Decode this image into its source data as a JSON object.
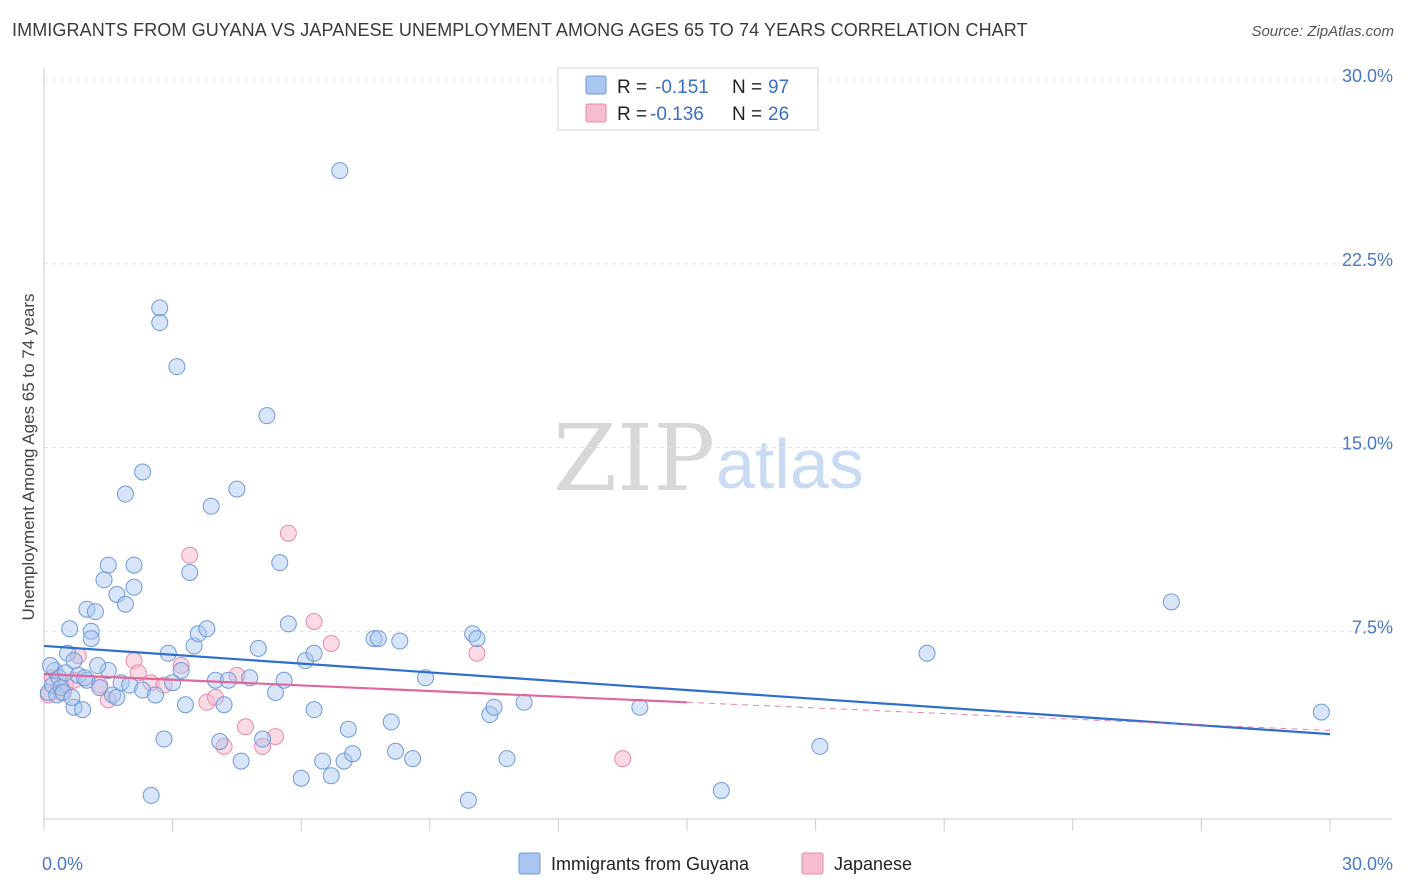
{
  "header": {
    "title": "IMMIGRANTS FROM GUYANA VS JAPANESE UNEMPLOYMENT AMONG AGES 65 TO 74 YEARS CORRELATION CHART",
    "source": "Source: ZipAtlas.com"
  },
  "watermark": {
    "zip": "ZIP",
    "atlas": "atlas"
  },
  "colors": {
    "guyana_fill": "#a9c6f0",
    "guyana_stroke": "#6f9ad8",
    "guyana_line": "#2f6fcc",
    "japanese_fill": "#f6bcd0",
    "japanese_stroke": "#e88aab",
    "japanese_line": "#e0679a",
    "grid": "#e3e3e3",
    "tick_text": "#4a78c4"
  },
  "legend": {
    "rows": [
      {
        "r_label": "R =",
        "r_value": "-0.151",
        "n_label": "N =",
        "n_value": "97"
      },
      {
        "r_label": "R =",
        "r_value": "-0.136",
        "n_label": "N =",
        "n_value": "26"
      }
    ]
  },
  "bottom_legend": {
    "series1": "Immigrants from Guyana",
    "series2": "Japanese"
  },
  "chart_data": {
    "type": "scatter",
    "title": "IMMIGRANTS FROM GUYANA VS JAPANESE UNEMPLOYMENT AMONG AGES 65 TO 74 YEARS CORRELATION CHART",
    "xlabel": "",
    "ylabel": "Unemployment Among Ages 65 to 74 years",
    "xlim": [
      0,
      30
    ],
    "ylim": [
      0,
      30
    ],
    "x_tick_labels": [
      "0.0%",
      "30.0%"
    ],
    "y_ticks": [
      7.5,
      15.0,
      22.5,
      30.0
    ],
    "y_tick_labels": [
      "7.5%",
      "15.0%",
      "22.5%",
      "30.0%"
    ],
    "grid": true,
    "legend_position": "top-center",
    "series": [
      {
        "name": "Immigrants from Guyana",
        "r": -0.151,
        "n": 97,
        "trend": {
          "x": [
            0,
            30
          ],
          "y": [
            6.9,
            3.3
          ]
        },
        "points": [
          [
            0.1,
            5.0
          ],
          [
            0.2,
            5.3
          ],
          [
            0.25,
            5.9
          ],
          [
            0.3,
            4.9
          ],
          [
            0.35,
            5.6
          ],
          [
            0.4,
            5.2
          ],
          [
            0.5,
            5.8
          ],
          [
            0.55,
            6.6
          ],
          [
            0.6,
            7.6
          ],
          [
            0.7,
            6.3
          ],
          [
            0.7,
            4.4
          ],
          [
            0.8,
            5.7
          ],
          [
            0.9,
            4.3
          ],
          [
            1.0,
            5.5
          ],
          [
            1.0,
            8.4
          ],
          [
            1.1,
            7.5
          ],
          [
            1.1,
            7.2
          ],
          [
            1.2,
            8.3
          ],
          [
            1.3,
            5.2
          ],
          [
            1.4,
            9.6
          ],
          [
            1.5,
            10.2
          ],
          [
            1.5,
            5.9
          ],
          [
            1.6,
            4.9
          ],
          [
            1.7,
            9.0
          ],
          [
            1.7,
            4.8
          ],
          [
            1.8,
            5.4
          ],
          [
            1.9,
            13.1
          ],
          [
            1.9,
            8.6
          ],
          [
            2.0,
            5.3
          ],
          [
            2.1,
            10.2
          ],
          [
            2.1,
            9.3
          ],
          [
            2.3,
            14.0
          ],
          [
            2.3,
            5.1
          ],
          [
            2.5,
            0.8
          ],
          [
            2.6,
            4.9
          ],
          [
            2.7,
            20.7
          ],
          [
            2.7,
            20.1
          ],
          [
            2.8,
            3.1
          ],
          [
            2.9,
            6.6
          ],
          [
            3.0,
            5.4
          ],
          [
            3.1,
            18.3
          ],
          [
            3.2,
            5.9
          ],
          [
            3.3,
            4.5
          ],
          [
            3.4,
            9.9
          ],
          [
            3.5,
            6.9
          ],
          [
            3.6,
            7.4
          ],
          [
            3.8,
            7.6
          ],
          [
            3.9,
            12.6
          ],
          [
            4.0,
            5.5
          ],
          [
            4.1,
            3.0
          ],
          [
            4.2,
            4.5
          ],
          [
            4.3,
            5.5
          ],
          [
            4.5,
            13.3
          ],
          [
            4.6,
            2.2
          ],
          [
            4.8,
            5.6
          ],
          [
            5.0,
            6.8
          ],
          [
            5.1,
            3.1
          ],
          [
            5.2,
            16.3
          ],
          [
            5.4,
            5.0
          ],
          [
            5.5,
            10.3
          ],
          [
            5.6,
            5.5
          ],
          [
            5.7,
            7.8
          ],
          [
            6.0,
            1.5
          ],
          [
            6.1,
            6.3
          ],
          [
            6.3,
            6.6
          ],
          [
            6.3,
            4.3
          ],
          [
            6.5,
            2.2
          ],
          [
            6.7,
            1.6
          ],
          [
            6.9,
            26.3
          ],
          [
            7.0,
            2.2
          ],
          [
            7.1,
            3.5
          ],
          [
            7.2,
            2.5
          ],
          [
            7.7,
            7.2
          ],
          [
            7.8,
            7.2
          ],
          [
            8.1,
            3.8
          ],
          [
            8.2,
            2.6
          ],
          [
            8.3,
            7.1
          ],
          [
            8.6,
            2.3
          ],
          [
            8.9,
            5.6
          ],
          [
            9.9,
            0.6
          ],
          [
            10.0,
            7.4
          ],
          [
            10.1,
            7.2
          ],
          [
            10.4,
            4.1
          ],
          [
            10.5,
            4.4
          ],
          [
            10.8,
            2.3
          ],
          [
            11.2,
            4.6
          ],
          [
            13.9,
            4.4
          ],
          [
            15.8,
            1.0
          ],
          [
            18.1,
            2.8
          ],
          [
            20.6,
            6.6
          ],
          [
            26.3,
            8.7
          ],
          [
            29.8,
            4.2
          ],
          [
            0.15,
            6.1
          ],
          [
            0.45,
            5.0
          ],
          [
            0.65,
            4.8
          ],
          [
            0.95,
            5.6
          ],
          [
            1.25,
            6.1
          ]
        ]
      },
      {
        "name": "Japanese",
        "r": -0.136,
        "n": 26,
        "trend": {
          "x": [
            0,
            15
          ],
          "y": [
            5.75,
            4.6
          ]
        },
        "trend_dashed": {
          "x": [
            15,
            30
          ],
          "y": [
            4.6,
            3.45
          ]
        },
        "points": [
          [
            0.1,
            4.9
          ],
          [
            0.2,
            5.6
          ],
          [
            0.4,
            5.0
          ],
          [
            0.5,
            5.3
          ],
          [
            0.7,
            5.5
          ],
          [
            0.8,
            6.5
          ],
          [
            1.3,
            5.3
          ],
          [
            1.5,
            4.7
          ],
          [
            2.1,
            6.3
          ],
          [
            2.2,
            5.8
          ],
          [
            2.5,
            5.4
          ],
          [
            2.8,
            5.3
          ],
          [
            3.2,
            6.1
          ],
          [
            3.4,
            10.6
          ],
          [
            3.8,
            4.6
          ],
          [
            4.0,
            4.8
          ],
          [
            4.2,
            2.8
          ],
          [
            4.5,
            5.7
          ],
          [
            4.7,
            3.6
          ],
          [
            5.1,
            2.8
          ],
          [
            5.4,
            3.2
          ],
          [
            5.7,
            11.5
          ],
          [
            6.3,
            7.9
          ],
          [
            6.7,
            7.0
          ],
          [
            10.1,
            6.6
          ],
          [
            13.5,
            2.3
          ]
        ]
      }
    ]
  },
  "axis_extra": {
    "ytick_label_values": [
      "7.5%",
      "15.0%",
      "22.5%",
      "30.0%"
    ],
    "xtick_label_values": [
      "0.0%",
      "30.0%"
    ]
  }
}
